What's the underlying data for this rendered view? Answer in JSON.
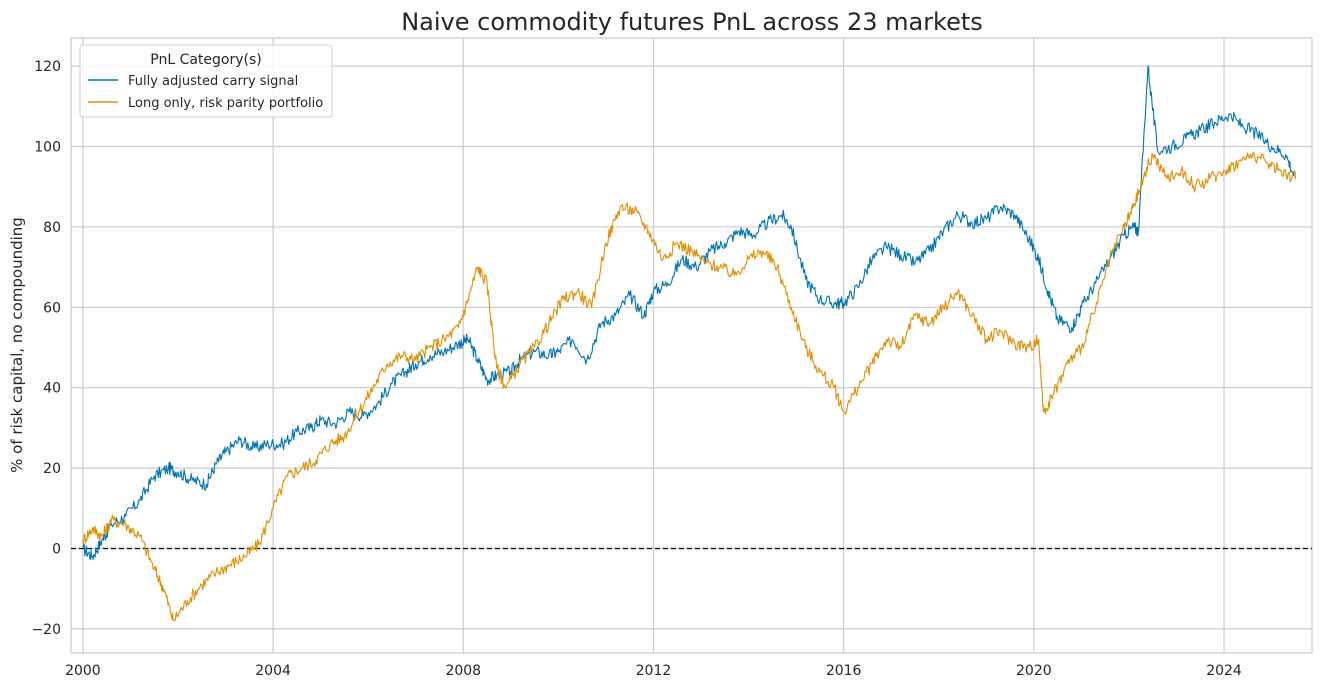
{
  "chart_data": {
    "type": "line",
    "title": "Naive commodity futures PnL across 23 markets",
    "xlabel": "",
    "ylabel": "% of risk capital, no compounding",
    "xlim": [
      1999.75,
      2025.85
    ],
    "ylim": [
      -26,
      127
    ],
    "x_ticks": [
      2000,
      2004,
      2008,
      2012,
      2016,
      2020,
      2024
    ],
    "y_ticks": [
      -20,
      0,
      20,
      40,
      60,
      80,
      100,
      120
    ],
    "y_tick_labels": [
      "−20",
      "0",
      "20",
      "40",
      "60",
      "80",
      "100",
      "120"
    ],
    "grid": true,
    "zero_line": {
      "y": 0,
      "style": "dashed",
      "color": "#000000"
    },
    "legend": {
      "title": "PnL Category(s)",
      "position": "top-left"
    },
    "series": [
      {
        "name": "Fully adjusted carry signal",
        "color": "#0173b2",
        "x": [
          2000.0,
          2000.2,
          2000.4,
          2000.6,
          2000.9,
          2001.2,
          2001.5,
          2001.8,
          2002.0,
          2002.3,
          2002.6,
          2002.8,
          2003.0,
          2003.3,
          2003.6,
          2003.9,
          2004.2,
          2004.5,
          2004.8,
          2005.0,
          2005.3,
          2005.6,
          2005.9,
          2006.2,
          2006.5,
          2006.8,
          2007.0,
          2007.3,
          2007.6,
          2007.9,
          2008.1,
          2008.3,
          2008.5,
          2008.7,
          2009.0,
          2009.2,
          2009.5,
          2009.8,
          2010.0,
          2010.3,
          2010.6,
          2010.9,
          2011.2,
          2011.5,
          2011.8,
          2012.0,
          2012.3,
          2012.6,
          2012.9,
          2013.2,
          2013.5,
          2013.8,
          2014.1,
          2014.4,
          2014.7,
          2014.9,
          2015.2,
          2015.5,
          2015.8,
          2016.0,
          2016.3,
          2016.6,
          2016.9,
          2017.2,
          2017.5,
          2017.8,
          2018.1,
          2018.4,
          2018.7,
          2019.0,
          2019.3,
          2019.6,
          2019.9,
          2020.1,
          2020.3,
          2020.5,
          2020.8,
          2021.0,
          2021.3,
          2021.6,
          2021.9,
          2022.1,
          2022.2,
          2022.4,
          2022.6,
          2022.9,
          2023.2,
          2023.5,
          2023.8,
          2024.1,
          2024.4,
          2024.7,
          2025.0,
          2025.3,
          2025.5
        ],
        "values": [
          0,
          -2,
          2,
          6,
          8,
          12,
          18,
          20,
          19,
          17,
          16,
          21,
          24,
          27,
          25,
          26,
          26,
          29,
          30,
          32,
          31,
          34,
          33,
          36,
          41,
          44,
          46,
          48,
          49,
          51,
          52,
          47,
          42,
          43,
          44,
          47,
          49,
          48,
          49,
          52,
          47,
          56,
          58,
          63,
          58,
          64,
          66,
          72,
          70,
          74,
          76,
          79,
          78,
          81,
          83,
          80,
          67,
          62,
          61,
          61,
          65,
          72,
          75,
          73,
          71,
          74,
          79,
          83,
          81,
          82,
          85,
          83,
          77,
          72,
          64,
          57,
          55,
          60,
          66,
          72,
          78,
          80,
          79,
          120,
          99,
          100,
          102,
          104,
          106,
          108,
          105,
          103,
          100,
          98,
          92
        ]
      },
      {
        "name": "Long only, risk parity portfolio",
        "color": "#de8f05",
        "x": [
          2000.0,
          2000.2,
          2000.4,
          2000.6,
          2000.9,
          2001.2,
          2001.5,
          2001.7,
          2001.9,
          2002.2,
          2002.5,
          2002.8,
          2003.1,
          2003.4,
          2003.7,
          2004.0,
          2004.3,
          2004.6,
          2004.9,
          2005.2,
          2005.5,
          2005.8,
          2006.1,
          2006.4,
          2006.7,
          2007.0,
          2007.3,
          2007.6,
          2007.9,
          2008.1,
          2008.3,
          2008.5,
          2008.7,
          2008.9,
          2009.2,
          2009.5,
          2009.8,
          2010.1,
          2010.4,
          2010.7,
          2011.0,
          2011.3,
          2011.6,
          2011.9,
          2012.2,
          2012.5,
          2012.8,
          2013.1,
          2013.4,
          2013.7,
          2014.0,
          2014.3,
          2014.6,
          2014.9,
          2015.2,
          2015.5,
          2015.8,
          2016.0,
          2016.3,
          2016.6,
          2016.9,
          2017.2,
          2017.5,
          2017.8,
          2018.1,
          2018.4,
          2018.7,
          2019.0,
          2019.3,
          2019.6,
          2019.9,
          2020.1,
          2020.2,
          2020.4,
          2020.7,
          2021.0,
          2021.3,
          2021.6,
          2021.9,
          2022.1,
          2022.3,
          2022.5,
          2022.8,
          2023.1,
          2023.4,
          2023.7,
          2024.0,
          2024.3,
          2024.6,
          2024.9,
          2025.2,
          2025.5
        ],
        "values": [
          2,
          5,
          3,
          7,
          6,
          3,
          -5,
          -10,
          -18,
          -13,
          -9,
          -6,
          -4,
          -2,
          1,
          10,
          18,
          20,
          22,
          26,
          28,
          34,
          40,
          46,
          48,
          47,
          50,
          52,
          55,
          62,
          70,
          66,
          45,
          40,
          46,
          50,
          56,
          62,
          64,
          60,
          76,
          85,
          84,
          79,
          72,
          76,
          74,
          71,
          70,
          68,
          72,
          74,
          70,
          60,
          50,
          44,
          40,
          34,
          40,
          46,
          52,
          50,
          58,
          56,
          60,
          64,
          58,
          52,
          54,
          51,
          50,
          52,
          34,
          38,
          46,
          50,
          60,
          72,
          80,
          85,
          92,
          98,
          92,
          94,
          90,
          92,
          94,
          96,
          98,
          96,
          94,
          92
        ]
      }
    ]
  }
}
